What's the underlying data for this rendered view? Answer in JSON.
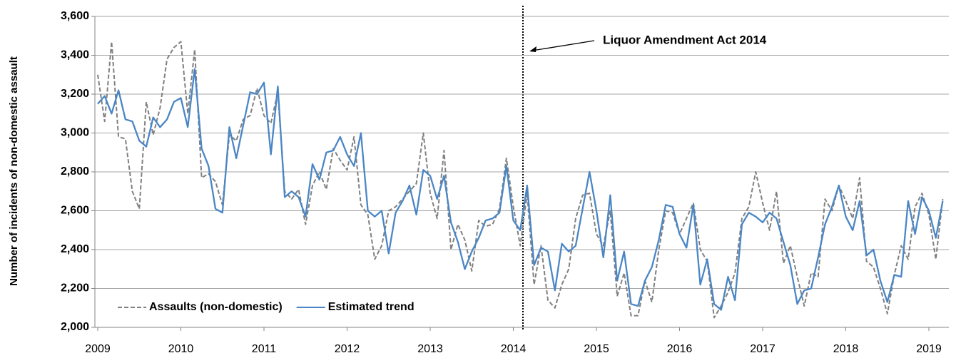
{
  "chart_data": {
    "type": "line",
    "y_label": "Number of incidents of non-domestic assault",
    "annotation": "Liquor Amendment Act 2014",
    "categories": [
      "2009",
      null,
      null,
      null,
      null,
      null,
      null,
      null,
      null,
      null,
      null,
      null,
      "2010",
      null,
      null,
      null,
      null,
      null,
      null,
      null,
      null,
      null,
      null,
      null,
      "2011",
      null,
      null,
      null,
      null,
      null,
      null,
      null,
      null,
      null,
      null,
      null,
      "2012",
      null,
      null,
      null,
      null,
      null,
      null,
      null,
      null,
      null,
      null,
      null,
      "2013",
      null,
      null,
      null,
      null,
      null,
      null,
      null,
      null,
      null,
      null,
      null,
      "2014",
      null,
      null,
      null,
      null,
      null,
      null,
      null,
      null,
      null,
      null,
      null,
      "2015",
      null,
      null,
      null,
      null,
      null,
      null,
      null,
      null,
      null,
      null,
      null,
      "2016",
      null,
      null,
      null,
      null,
      null,
      null,
      null,
      null,
      null,
      null,
      null,
      "2017",
      null,
      null,
      null,
      null,
      null,
      null,
      null,
      null,
      null,
      null,
      null,
      "2018",
      null,
      null,
      null,
      null,
      null,
      null,
      null,
      null,
      null,
      null,
      null,
      "2019",
      null,
      null
    ],
    "series": [
      {
        "name": "Assaults (non-domestic)",
        "color": "#808080",
        "dashed": true,
        "values": [
          3300,
          3060,
          3470,
          2980,
          2970,
          2700,
          2610,
          3160,
          2990,
          3130,
          3380,
          3440,
          3470,
          3100,
          3430,
          2770,
          2790,
          2750,
          2630,
          2990,
          2960,
          3070,
          3090,
          3230,
          3090,
          3050,
          3210,
          2700,
          2660,
          2710,
          2530,
          2730,
          2800,
          2710,
          2920,
          2860,
          2810,
          2980,
          2630,
          2580,
          2350,
          2420,
          2600,
          2620,
          2660,
          2700,
          2740,
          3000,
          2690,
          2560,
          2910,
          2400,
          2530,
          2450,
          2290,
          2550,
          2520,
          2530,
          2610,
          2870,
          2620,
          2420,
          2690,
          2220,
          2420,
          2140,
          2100,
          2220,
          2300,
          2560,
          2680,
          2690,
          2480,
          2420,
          2600,
          2160,
          2280,
          2060,
          2060,
          2240,
          2130,
          2400,
          2600,
          2590,
          2480,
          2560,
          2640,
          2400,
          2340,
          2050,
          2110,
          2180,
          2280,
          2560,
          2620,
          2800,
          2640,
          2500,
          2700,
          2330,
          2420,
          2260,
          2110,
          2280,
          2260,
          2660,
          2600,
          2730,
          2650,
          2560,
          2770,
          2340,
          2310,
          2200,
          2070,
          2270,
          2420,
          2350,
          2620,
          2690,
          2580,
          2350,
          2660
        ]
      },
      {
        "name": "Estimated trend",
        "color": "#4a86c5",
        "dashed": false,
        "values": [
          3150,
          3190,
          3100,
          3220,
          3070,
          3060,
          2960,
          2930,
          3080,
          3030,
          3070,
          3160,
          3180,
          3030,
          3330,
          2920,
          2830,
          2610,
          2590,
          3030,
          2870,
          3040,
          3210,
          3200,
          3260,
          2890,
          3240,
          2670,
          2700,
          2670,
          2570,
          2840,
          2760,
          2900,
          2910,
          2980,
          2890,
          2830,
          3000,
          2600,
          2570,
          2600,
          2380,
          2590,
          2650,
          2730,
          2580,
          2810,
          2780,
          2660,
          2780,
          2540,
          2440,
          2300,
          2390,
          2460,
          2550,
          2560,
          2590,
          2830,
          2550,
          2500,
          2730,
          2320,
          2410,
          2390,
          2190,
          2430,
          2390,
          2420,
          2610,
          2800,
          2600,
          2360,
          2680,
          2240,
          2390,
          2120,
          2110,
          2240,
          2310,
          2450,
          2630,
          2620,
          2480,
          2410,
          2630,
          2220,
          2350,
          2120,
          2090,
          2260,
          2140,
          2530,
          2590,
          2570,
          2540,
          2590,
          2560,
          2440,
          2320,
          2120,
          2190,
          2200,
          2360,
          2530,
          2620,
          2730,
          2570,
          2500,
          2650,
          2370,
          2400,
          2240,
          2130,
          2270,
          2260,
          2650,
          2480,
          2670,
          2600,
          2460,
          2650
        ]
      }
    ],
    "ylim": [
      2000,
      3600
    ],
    "yticks": [
      {
        "value": 2000,
        "label": "2,000"
      },
      {
        "value": 2200,
        "label": "2,200"
      },
      {
        "value": 2400,
        "label": "2,400"
      },
      {
        "value": 2600,
        "label": "2,600"
      },
      {
        "value": 2800,
        "label": "2,800"
      },
      {
        "value": 3000,
        "label": "3,000"
      },
      {
        "value": 3200,
        "label": "3,200"
      },
      {
        "value": 3400,
        "label": "3,400"
      },
      {
        "value": 3600,
        "label": "3,600"
      }
    ],
    "grid": true,
    "legend": "lower-left"
  }
}
